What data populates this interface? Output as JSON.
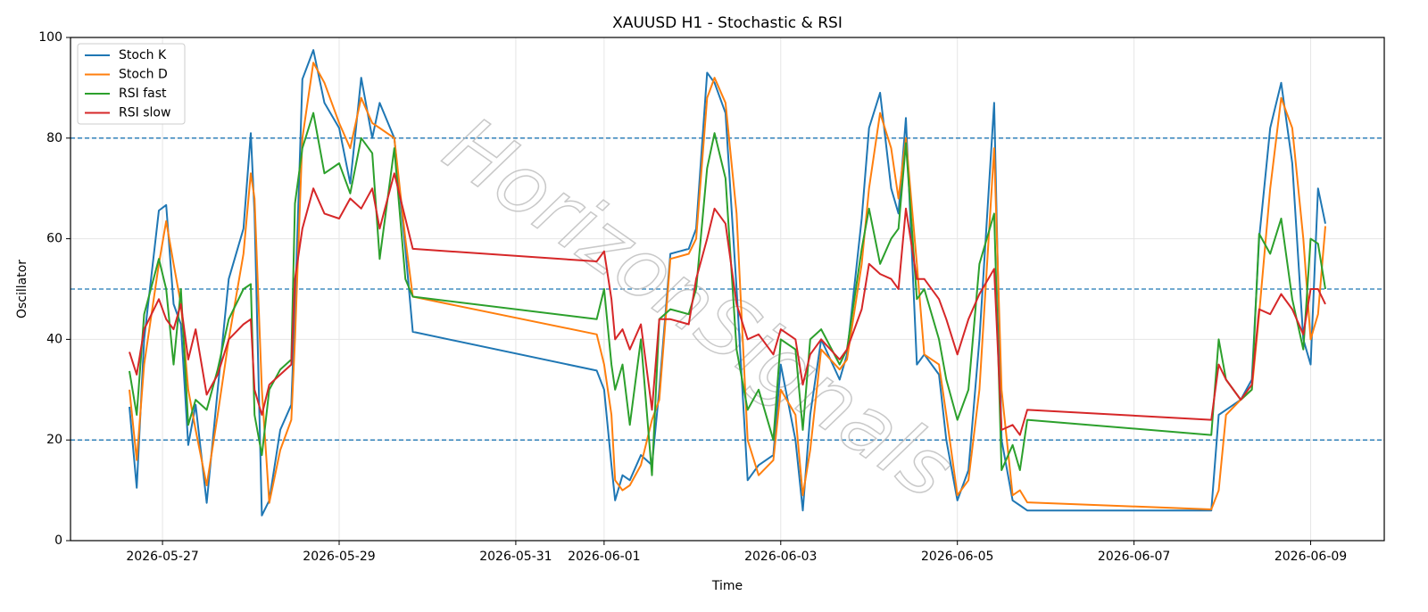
{
  "chart_data": {
    "type": "line",
    "title": "XAUUSD H1 - Stochastic & RSI",
    "x_label": "Time",
    "y_label": "Oscillator",
    "watermark": "HorizonSignals",
    "x": [
      "2026-05-26 15:00",
      "2026-05-26 17:00",
      "2026-05-26 19:00",
      "2026-05-26 23:00",
      "2026-05-27 01:00",
      "2026-05-27 03:00",
      "2026-05-27 05:00",
      "2026-05-27 07:00",
      "2026-05-27 09:00",
      "2026-05-27 12:00",
      "2026-05-27 15:00",
      "2026-05-27 18:00",
      "2026-05-27 22:00",
      "2026-05-28 00:00",
      "2026-05-28 01:00",
      "2026-05-28 03:00",
      "2026-05-28 05:00",
      "2026-05-28 08:00",
      "2026-05-28 11:00",
      "2026-05-28 12:00",
      "2026-05-28 14:00",
      "2026-05-28 17:00",
      "2026-05-28 20:00",
      "2026-05-29 00:00",
      "2026-05-29 03:00",
      "2026-05-29 06:00",
      "2026-05-29 09:00",
      "2026-05-29 11:00",
      "2026-05-29 15:00",
      "2026-05-29 18:00",
      "2026-05-29 20:00",
      "2026-05-31 22:00",
      "2026-06-01 00:00",
      "2026-06-01 02:00",
      "2026-06-01 03:00",
      "2026-06-01 05:00",
      "2026-06-01 07:00",
      "2026-06-01 10:00",
      "2026-06-01 13:00",
      "2026-06-01 15:00",
      "2026-06-01 18:00",
      "2026-06-01 23:00",
      "2026-06-02 01:00",
      "2026-06-02 04:00",
      "2026-06-02 06:00",
      "2026-06-02 09:00",
      "2026-06-02 12:00",
      "2026-06-02 15:00",
      "2026-06-02 18:00",
      "2026-06-02 22:00",
      "2026-06-03 00:00",
      "2026-06-03 04:00",
      "2026-06-03 06:00",
      "2026-06-03 08:00",
      "2026-06-03 11:00",
      "2026-06-03 16:00",
      "2026-06-03 18:00",
      "2026-06-03 22:00",
      "2026-06-04 00:00",
      "2026-06-04 03:00",
      "2026-06-04 06:00",
      "2026-06-04 08:00",
      "2026-06-04 10:00",
      "2026-06-04 13:00",
      "2026-06-04 15:00",
      "2026-06-04 19:00",
      "2026-06-04 21:00",
      "2026-06-05 00:00",
      "2026-06-05 03:00",
      "2026-06-05 06:00",
      "2026-06-05 10:00",
      "2026-06-05 12:00",
      "2026-06-05 15:00",
      "2026-06-05 17:00",
      "2026-06-05 19:00",
      "2026-06-07 21:00",
      "2026-06-07 23:00",
      "2026-06-08 01:00",
      "2026-06-08 05:00",
      "2026-06-08 08:00",
      "2026-06-08 10:00",
      "2026-06-08 13:00",
      "2026-06-08 16:00",
      "2026-06-08 19:00",
      "2026-06-08 22:00",
      "2026-06-09 00:00",
      "2026-06-09 02:00",
      "2026-06-09 04:00"
    ],
    "series": [
      {
        "name": "Stoch K",
        "color": "#1f77b4",
        "values": [
          26.6,
          10.5,
          40,
          65.6,
          66.7,
          47,
          43,
          19,
          27,
          7.5,
          30,
          52,
          62,
          81,
          65,
          5,
          8,
          22,
          27,
          46,
          91.7,
          97.5,
          87,
          82,
          71,
          92,
          80,
          87,
          80,
          58,
          41.5,
          33.8,
          30,
          15,
          8,
          13,
          12,
          17,
          15,
          30,
          57,
          58,
          62,
          93,
          91,
          85,
          50,
          12,
          15,
          17,
          35,
          20,
          6,
          25,
          40,
          32,
          37,
          64,
          82,
          89,
          70,
          65,
          84,
          35,
          37,
          33,
          20,
          8,
          14,
          40,
          87,
          20,
          8,
          7,
          6,
          6,
          25,
          26,
          28,
          32,
          60,
          82,
          91,
          75,
          40,
          35,
          70,
          63
        ]
      },
      {
        "name": "Stoch D",
        "color": "#ff7f0e",
        "values": [
          30,
          16,
          35,
          55,
          63.5,
          55,
          47,
          30,
          22,
          11,
          25,
          40,
          57,
          73,
          68,
          30,
          7.5,
          18,
          24,
          40,
          80,
          95,
          91,
          83,
          78,
          88,
          83,
          82,
          80,
          60,
          48.5,
          41,
          35,
          25,
          12,
          10,
          11,
          15,
          24,
          28,
          56,
          57,
          60,
          88,
          92,
          87,
          65,
          20,
          13,
          16,
          30,
          25,
          9,
          18,
          38,
          34,
          36,
          55,
          70,
          85,
          78,
          68,
          80,
          55,
          37,
          35,
          25,
          9,
          12,
          30,
          78,
          30,
          9,
          10,
          7.6,
          6.2,
          10,
          25,
          28,
          30,
          45,
          70,
          88,
          82,
          60,
          40,
          45,
          62.5
        ]
      },
      {
        "name": "RSI fast",
        "color": "#2ca02c",
        "values": [
          33.7,
          25,
          45,
          56,
          50,
          35,
          50,
          23,
          28,
          26,
          34,
          44,
          50,
          51,
          25,
          17,
          30,
          34,
          36,
          67,
          78,
          85,
          73,
          75,
          69,
          80,
          77,
          56,
          78,
          52,
          48.5,
          44,
          50,
          35,
          30,
          35,
          23,
          40,
          13,
          44,
          46,
          45,
          50,
          74,
          81,
          72,
          38,
          26,
          30,
          20,
          40,
          38,
          22,
          40,
          42,
          35,
          38,
          58,
          66,
          55,
          60,
          62,
          79,
          48,
          50,
          40,
          32,
          24,
          30,
          55,
          65,
          14,
          19,
          14,
          24,
          21,
          40,
          32,
          28,
          30,
          61,
          57,
          64,
          48,
          38,
          60,
          59,
          50
        ]
      },
      {
        "name": "RSI slow",
        "color": "#d62728",
        "values": [
          37.5,
          33,
          42,
          48,
          44,
          42,
          47,
          36,
          42,
          29,
          33,
          40,
          43,
          44,
          30,
          25,
          31,
          33,
          35,
          52,
          62,
          70,
          65,
          64,
          68,
          66,
          70,
          62,
          73,
          64,
          58,
          55.5,
          57.5,
          48,
          40,
          42,
          38,
          43,
          26,
          44,
          44,
          43,
          52,
          60,
          66,
          63,
          47,
          40,
          41,
          37,
          42,
          40,
          31,
          37,
          40,
          36,
          38,
          46,
          55,
          53,
          52,
          50,
          66,
          52,
          52,
          48,
          44,
          37,
          44,
          49,
          54,
          22,
          23,
          21,
          26,
          24,
          35,
          32,
          28,
          31,
          46,
          45,
          49,
          46,
          41,
          50,
          50,
          47
        ]
      }
    ],
    "xlim": [
      "2026-05-25 23:00",
      "2026-06-09 20:00"
    ],
    "xticks": [
      "2026-05-27",
      "2026-05-29",
      "2026-05-31",
      "2026-06-01",
      "2026-06-03",
      "2026-06-05",
      "2026-06-07",
      "2026-06-09"
    ],
    "ylim": [
      0,
      100
    ],
    "yticks": [
      0,
      20,
      40,
      60,
      80,
      100
    ],
    "hlines": [
      20,
      50,
      80
    ],
    "hline_color": "#1f77b4",
    "grid": true,
    "legend": "upper left"
  }
}
